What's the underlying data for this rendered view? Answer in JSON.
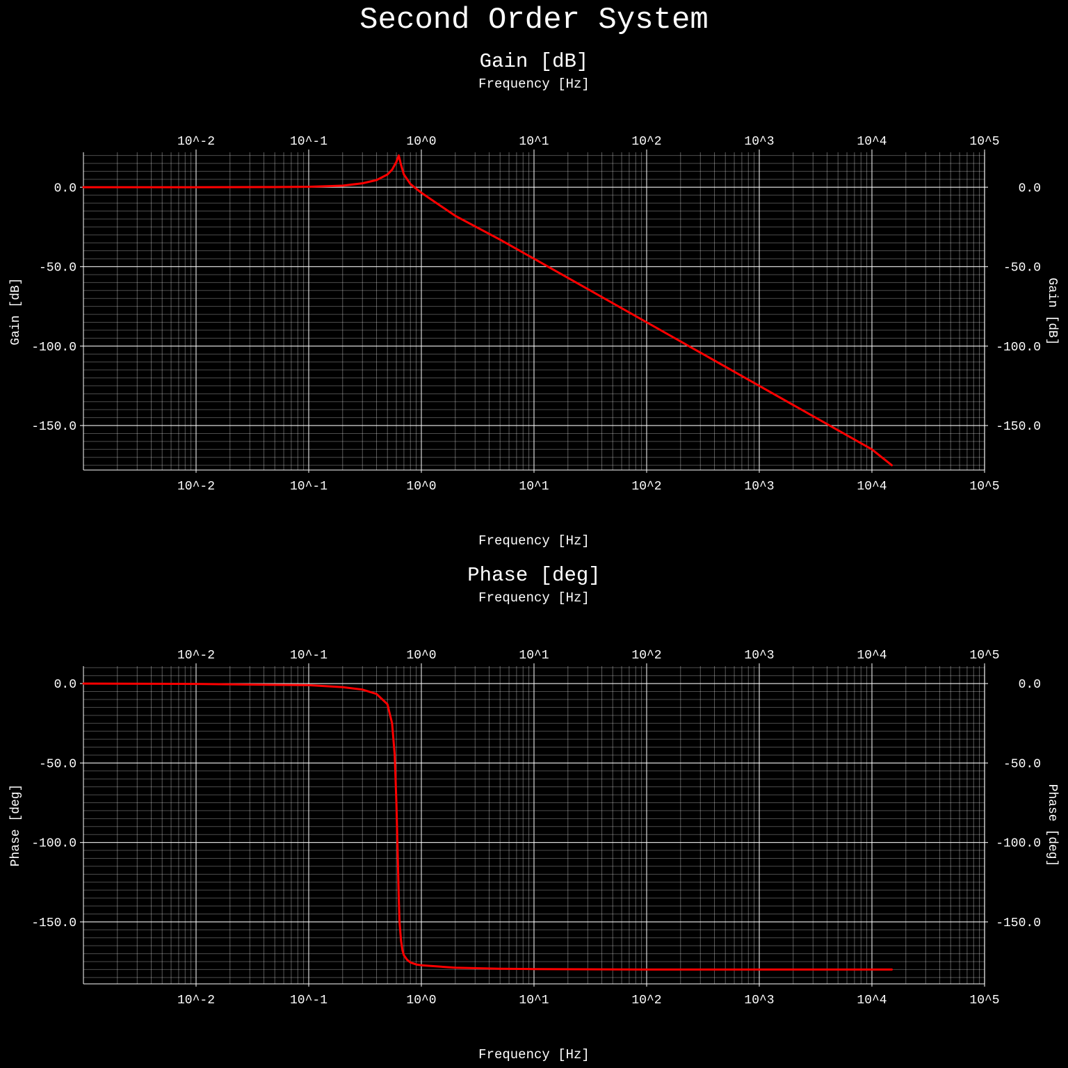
{
  "title": "Second Order System",
  "colors": {
    "background": "#000000",
    "line": "#ff0000",
    "grid": "#ffffff"
  },
  "chart_data": [
    {
      "type": "line",
      "title": "Gain [dB]",
      "xlabel": "Frequency [Hz]",
      "ylabel": "Gain [dB]",
      "xscale": "log",
      "xlim": [
        0.001,
        100000
      ],
      "ylim": [
        -178,
        22
      ],
      "xticks": [
        "10^-2",
        "10^-1",
        "10^0",
        "10^1",
        "10^2",
        "10^3",
        "10^4",
        "10^5"
      ],
      "yticks": [
        "0.0",
        "-50.0",
        "-100.0",
        "-150.0"
      ],
      "grid": true,
      "series": [
        {
          "x": [
            0.001,
            0.01,
            0.05,
            0.1,
            0.2,
            0.3,
            0.4,
            0.5,
            0.55,
            0.6,
            0.63,
            0.66,
            0.7,
            0.8,
            1,
            2,
            5,
            10,
            100,
            1000,
            10000,
            15000
          ],
          "y": [
            0,
            0,
            0.1,
            0.3,
            1.0,
            2.5,
            4.5,
            8.0,
            11.0,
            16.0,
            20.0,
            14.0,
            8.0,
            2.0,
            -3.5,
            -18,
            -33,
            -45,
            -85,
            -125,
            -165,
            -175
          ]
        }
      ]
    },
    {
      "type": "line",
      "title": "Phase [deg]",
      "xlabel": "Frequency [Hz]",
      "ylabel": "Phase [deg]",
      "xscale": "log",
      "xlim": [
        0.001,
        100000
      ],
      "ylim": [
        -189,
        11
      ],
      "xticks": [
        "10^-2",
        "10^-1",
        "10^0",
        "10^1",
        "10^2",
        "10^3",
        "10^4",
        "10^5"
      ],
      "yticks": [
        "0.0",
        "-50.0",
        "-100.0",
        "-150.0"
      ],
      "grid": true,
      "series": [
        {
          "x": [
            0.001,
            0.01,
            0.1,
            0.2,
            0.3,
            0.4,
            0.5,
            0.55,
            0.58,
            0.6,
            0.62,
            0.63,
            0.64,
            0.66,
            0.68,
            0.7,
            0.75,
            0.8,
            0.9,
            1,
            2,
            5,
            10,
            100,
            1000,
            10000,
            15000
          ],
          "y": [
            0,
            -0.2,
            -1.0,
            -2.2,
            -3.8,
            -6.5,
            -13,
            -25,
            -45,
            -75,
            -115,
            -135,
            -150,
            -162,
            -168,
            -171,
            -174,
            -175.5,
            -176.8,
            -177.3,
            -178.8,
            -179.5,
            -179.7,
            -180,
            -180,
            -180,
            -180
          ]
        }
      ]
    }
  ]
}
